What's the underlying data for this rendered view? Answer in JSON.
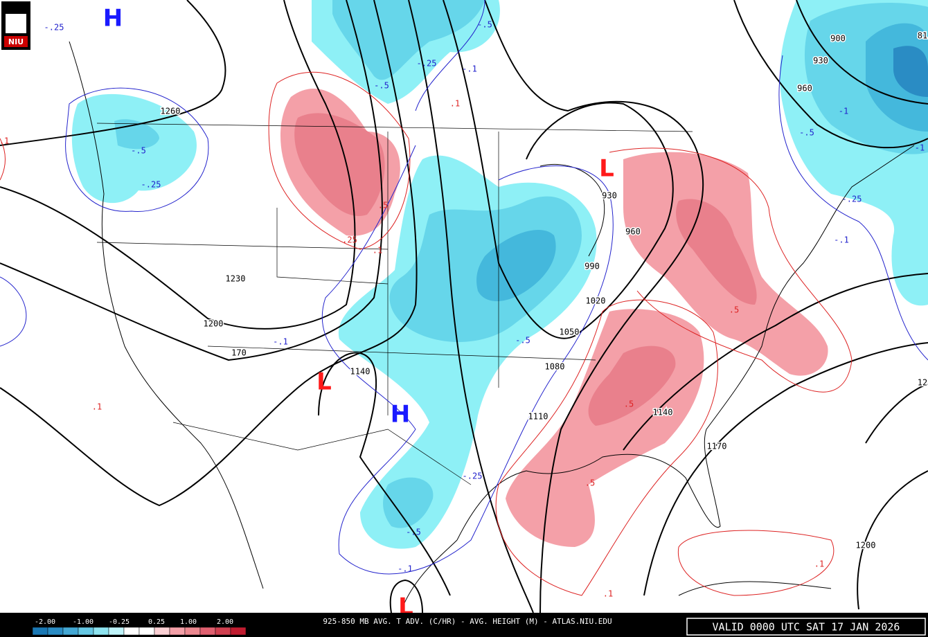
{
  "logo": "NIU",
  "map_labels": [
    {
      "text": "H",
      "kind": "high"
    },
    {
      "text": "H",
      "kind": "high"
    },
    {
      "text": "L",
      "kind": "low"
    },
    {
      "text": "L",
      "kind": "low"
    },
    {
      "text": "L",
      "kind": "low"
    },
    {
      "text": "1260",
      "kind": "height"
    },
    {
      "text": "1230",
      "kind": "height"
    },
    {
      "text": "1200",
      "kind": "height"
    },
    {
      "text": "170",
      "kind": "height"
    },
    {
      "text": "1140",
      "kind": "height"
    },
    {
      "text": "1110",
      "kind": "height"
    },
    {
      "text": "1080",
      "kind": "height"
    },
    {
      "text": "1050",
      "kind": "height"
    },
    {
      "text": "1020",
      "kind": "height"
    },
    {
      "text": "990",
      "kind": "height"
    },
    {
      "text": "960",
      "kind": "height"
    },
    {
      "text": "930",
      "kind": "height"
    },
    {
      "text": "900",
      "kind": "height"
    },
    {
      "text": "930",
      "kind": "height"
    },
    {
      "text": "960",
      "kind": "height"
    },
    {
      "text": "1140",
      "kind": "height"
    },
    {
      "text": "1170",
      "kind": "height"
    },
    {
      "text": "1200",
      "kind": "height"
    },
    {
      "text": "12",
      "kind": "height"
    },
    {
      "text": "81",
      "kind": "height"
    },
    {
      "text": "-.25",
      "kind": "cold"
    },
    {
      "text": "-.5",
      "kind": "cold"
    },
    {
      "text": "-.25",
      "kind": "cold"
    },
    {
      "text": "-.5",
      "kind": "cold"
    },
    {
      "text": "-.25",
      "kind": "cold"
    },
    {
      "text": "-.1",
      "kind": "cold"
    },
    {
      "text": "-.5",
      "kind": "cold"
    },
    {
      "text": "-.1",
      "kind": "cold"
    },
    {
      "text": "-.5",
      "kind": "cold"
    },
    {
      "text": "-.25",
      "kind": "cold"
    },
    {
      "text": "-.5",
      "kind": "cold"
    },
    {
      "text": "-.1",
      "kind": "cold"
    },
    {
      "text": "-.25",
      "kind": "cold"
    },
    {
      "text": "-.1",
      "kind": "cold"
    },
    {
      "text": "-.5",
      "kind": "cold"
    },
    {
      "text": "-1",
      "kind": "cold"
    },
    {
      "text": "-1",
      "kind": "cold"
    },
    {
      "text": ".1",
      "kind": "warm"
    },
    {
      "text": ".25",
      "kind": "warm"
    },
    {
      "text": ".5",
      "kind": "warm"
    },
    {
      "text": ".1",
      "kind": "warm"
    },
    {
      "text": ".1",
      "kind": "warm"
    },
    {
      "text": ".5",
      "kind": "warm"
    },
    {
      "text": ".5",
      "kind": "warm"
    },
    {
      "text": ".5",
      "kind": "warm"
    },
    {
      "text": ".1",
      "kind": "warm"
    },
    {
      "text": ".1",
      "kind": "warm"
    },
    {
      "text": ".1",
      "kind": "warm"
    }
  ],
  "legend_ticks": [
    "-2.00",
    "-1.00",
    "-0.25",
    "0.25",
    "1.00",
    "2.00"
  ],
  "footer_title": "925-850 MB AVG. T ADV. (C/HR) - AVG. HEIGHT (M) - ATLAS.NIU.EDU",
  "valid_time": "VALID 0000 UTC SAT 17 JAN 2026"
}
